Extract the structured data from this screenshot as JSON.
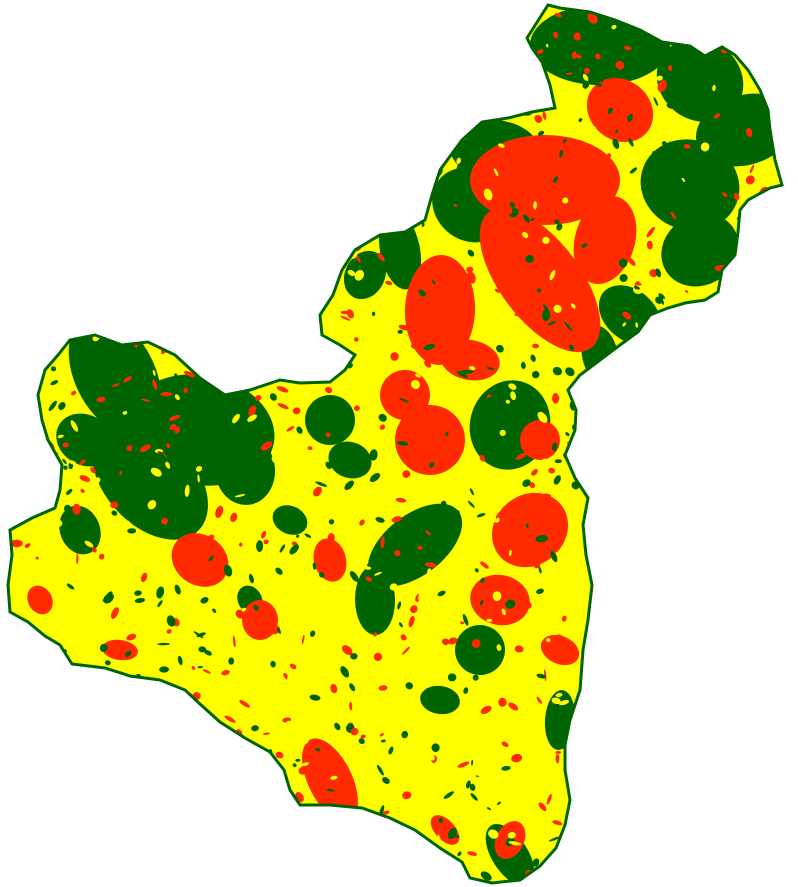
{
  "map": {
    "type": "classified-raster-region",
    "background_color": "#ffffff",
    "legend_visible": false,
    "classes": [
      {
        "id": "low",
        "color": "#ffff00"
      },
      {
        "id": "medium",
        "color": "#ff2a00"
      },
      {
        "id": "high",
        "color": "#006400"
      }
    ]
  }
}
